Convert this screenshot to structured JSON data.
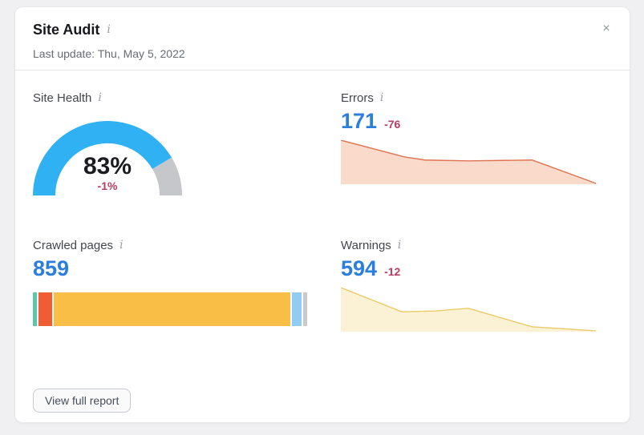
{
  "header": {
    "title": "Site Audit",
    "last_update": "Last update: Thu, May 5, 2022",
    "info_icon_glyph": "i",
    "close_icon_glyph": "×"
  },
  "metrics": {
    "site_health": {
      "label": "Site Health",
      "value": "83%",
      "delta": "-1%"
    },
    "errors": {
      "label": "Errors",
      "value": "171",
      "delta": "-76"
    },
    "crawled_pages": {
      "label": "Crawled pages",
      "value": "859"
    },
    "warnings": {
      "label": "Warnings",
      "value": "594",
      "delta": "-12"
    }
  },
  "footer": {
    "view_report_label": "View full report"
  },
  "colors": {
    "page_background": "#F0F0F2",
    "card_background": "#FFFFFF",
    "metric_value_blue": "#2A7FDE",
    "delta_red": "#B53D60",
    "gauge_blue": "#2FB1F3",
    "gauge_track_gray": "#C5C7CB"
  },
  "chart_data": [
    {
      "type": "gauge",
      "title": "Site Health",
      "percent": 83,
      "delta_percent": -1,
      "range": [
        0,
        100
      ],
      "color": "#2FB1F3",
      "track_color": "#C5C7CB"
    },
    {
      "type": "area",
      "title": "Errors",
      "current_value": 171,
      "delta": -76,
      "line": "#DE7352",
      "fill": "#FADACA",
      "y_scale": "normalized 0-1 of sparkline height (no axes shown)",
      "points": [
        {
          "x": 0.0,
          "y": 1.0
        },
        {
          "x": 0.25,
          "y": 0.62
        },
        {
          "x": 0.33,
          "y": 0.55
        },
        {
          "x": 0.5,
          "y": 0.53
        },
        {
          "x": 0.75,
          "y": 0.55
        },
        {
          "x": 1.0,
          "y": 0.02
        }
      ]
    },
    {
      "type": "stacked-bar",
      "title": "Crawled pages",
      "total": 859,
      "segments": [
        {
          "color": "#57C9A6",
          "percent": 1.4
        },
        {
          "color": "#F05C33",
          "percent": 5.0
        },
        {
          "color": "#F9BE45",
          "percent": 86.3
        },
        {
          "color": "#93CCF3",
          "percent": 3.6
        },
        {
          "color": "#C9CACC",
          "percent": 1.5
        }
      ]
    },
    {
      "type": "area",
      "title": "Warnings",
      "current_value": 594,
      "delta": -12,
      "line": "#EACB66",
      "fill": "#FBF2D6",
      "y_scale": "normalized 0-1 of sparkline height (no axes shown)",
      "points": [
        {
          "x": 0.0,
          "y": 1.0
        },
        {
          "x": 0.24,
          "y": 0.45
        },
        {
          "x": 0.37,
          "y": 0.47
        },
        {
          "x": 0.5,
          "y": 0.53
        },
        {
          "x": 0.75,
          "y": 0.11
        },
        {
          "x": 1.0,
          "y": 0.02
        }
      ]
    }
  ]
}
